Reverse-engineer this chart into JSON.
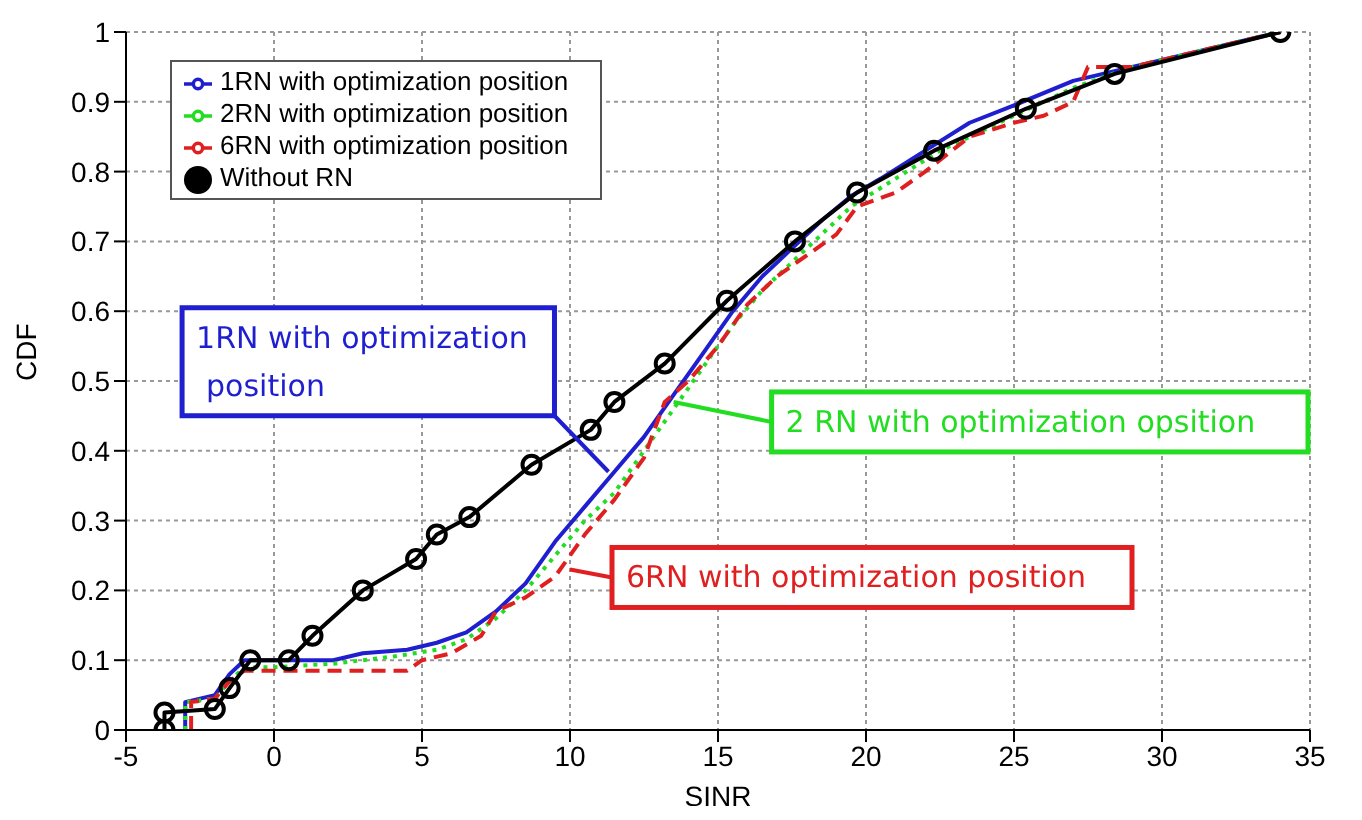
{
  "chart_data": {
    "type": "line",
    "xlabel": "SINR",
    "ylabel": "CDF",
    "xlim": [
      -5,
      35
    ],
    "xticks": [
      -5,
      0,
      5,
      10,
      15,
      20,
      25,
      30,
      35
    ],
    "ylim": [
      0,
      1
    ],
    "yticks": [
      0,
      0.1,
      0.2,
      0.3,
      0.4,
      0.5,
      0.6,
      0.7,
      0.8,
      0.9,
      1
    ],
    "grid": true,
    "legend": "top left",
    "series": [
      {
        "name": "1RN with optimization position",
        "color": "#1f1fd0",
        "line_style": "solid",
        "marker": "none",
        "x": [
          -3,
          -3,
          -2,
          -1.5,
          -1,
          0,
          2,
          3,
          4.5,
          5.5,
          6.5,
          7.5,
          8.5,
          9.5,
          10.5,
          11.5,
          12.5,
          13.5,
          14.5,
          15.5,
          16.5,
          17.5,
          18.5,
          19.5,
          20.5,
          22,
          23.5,
          25,
          27,
          29,
          31,
          33,
          34
        ],
        "values": [
          0,
          0.04,
          0.05,
          0.08,
          0.1,
          0.1,
          0.1,
          0.11,
          0.115,
          0.125,
          0.14,
          0.17,
          0.21,
          0.27,
          0.32,
          0.37,
          0.42,
          0.48,
          0.54,
          0.6,
          0.65,
          0.69,
          0.73,
          0.765,
          0.79,
          0.83,
          0.87,
          0.895,
          0.93,
          0.95,
          0.97,
          0.99,
          1
        ]
      },
      {
        "name": "2RN with optimization position",
        "color": "#22dd22",
        "line_style": "dotted",
        "marker": "none",
        "x": [
          -3,
          -3,
          -2,
          -1.5,
          -1,
          0,
          2,
          4,
          5.5,
          6.5,
          7.5,
          8.5,
          9.5,
          10.5,
          11.5,
          12.5,
          13.5,
          14.5,
          15.5,
          16.5,
          17.5,
          18.5,
          19.5,
          21,
          22.5,
          24,
          25.5,
          27,
          29,
          31,
          33,
          34
        ],
        "values": [
          0,
          0.04,
          0.045,
          0.07,
          0.09,
          0.09,
          0.095,
          0.105,
          0.115,
          0.13,
          0.16,
          0.2,
          0.25,
          0.3,
          0.34,
          0.4,
          0.46,
          0.52,
          0.58,
          0.63,
          0.67,
          0.71,
          0.75,
          0.79,
          0.83,
          0.86,
          0.89,
          0.92,
          0.95,
          0.97,
          0.99,
          1
        ]
      },
      {
        "name": "6RN with optimization position",
        "color": "#e02020",
        "line_style": "dashed",
        "marker": "none",
        "x": [
          -2.8,
          -2.8,
          -2,
          -1.5,
          -1,
          0,
          4.5,
          5,
          6,
          7,
          7.5,
          8.5,
          9.5,
          10.5,
          11.5,
          12.5,
          13.2,
          14,
          15,
          16,
          17,
          18,
          19,
          19.7,
          21,
          22,
          23.5,
          25,
          26,
          27,
          27.5,
          29,
          31,
          33,
          34
        ],
        "values": [
          0,
          0.04,
          0.045,
          0.07,
          0.085,
          0.085,
          0.085,
          0.1,
          0.11,
          0.135,
          0.17,
          0.19,
          0.22,
          0.28,
          0.33,
          0.39,
          0.47,
          0.5,
          0.55,
          0.61,
          0.65,
          0.68,
          0.71,
          0.75,
          0.77,
          0.8,
          0.85,
          0.87,
          0.88,
          0.9,
          0.95,
          0.95,
          0.97,
          0.99,
          1
        ]
      },
      {
        "name": "Without RN",
        "color": "#000000",
        "line_style": "solid",
        "marker": "circle",
        "x": [
          -3.7,
          -3.7,
          -2,
          -1.5,
          -0.8,
          0.5,
          1.3,
          3,
          4.8,
          5.5,
          6.6,
          8.7,
          10.7,
          11.5,
          13.2,
          15.3,
          17.6,
          19.7,
          22.3,
          25.4,
          28.4,
          34
        ],
        "values": [
          0,
          0.025,
          0.03,
          0.06,
          0.1,
          0.1,
          0.135,
          0.2,
          0.245,
          0.28,
          0.305,
          0.38,
          0.43,
          0.47,
          0.525,
          0.615,
          0.7,
          0.77,
          0.83,
          0.89,
          0.94,
          1
        ]
      }
    ],
    "annotations": [
      {
        "text": "1RN with optimization position",
        "x": 11.3,
        "y": 0.37
      },
      {
        "text": "2 RN with optimization opsition",
        "x": 13.5,
        "y": 0.47
      },
      {
        "text": "6RN with optimization position",
        "x": 10,
        "y": 0.23
      }
    ]
  }
}
